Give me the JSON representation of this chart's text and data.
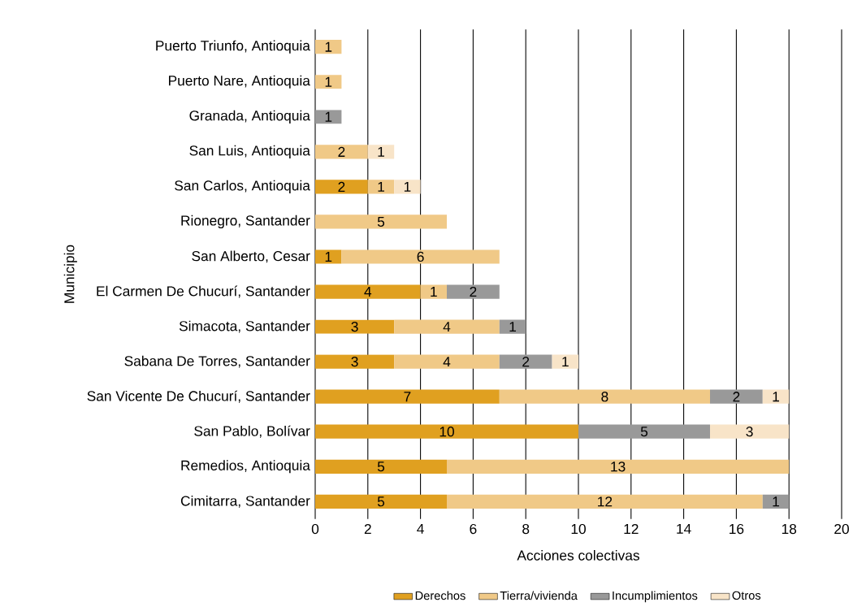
{
  "chart_data": {
    "type": "bar",
    "orientation": "horizontal",
    "stacked": true,
    "data_labels": true,
    "grid": "x",
    "legend": "bottom",
    "xlabel": "Acciones colectivas",
    "ylabel": "Municipio",
    "xlim": [
      0,
      20
    ],
    "xticks": [
      0,
      2,
      4,
      6,
      8,
      10,
      12,
      14,
      16,
      18,
      20
    ],
    "categories": [
      "Puerto Triunfo, Antioquia",
      "Puerto Nare, Antioquia",
      "Granada, Antioquia",
      "San Luis, Antioquia",
      "San Carlos, Antioquia",
      "Rionegro, Santander",
      "San Alberto, Cesar",
      "El Carmen De Chucurí, Santander",
      "Simacota, Santander",
      "Sabana De Torres, Santander",
      "San Vicente De Chucurí, Santander",
      "San Pablo, Bolívar",
      "Remedios, Antioquia",
      "Cimitarra, Santander"
    ],
    "series": [
      {
        "name": "Derechos",
        "color": "#e0a020",
        "values": [
          null,
          null,
          null,
          null,
          2,
          null,
          1,
          4,
          3,
          3,
          7,
          10,
          5,
          5
        ]
      },
      {
        "name": "Tierra/vivienda",
        "color": "#f0c987",
        "values": [
          1,
          1,
          null,
          2,
          1,
          5,
          6,
          1,
          4,
          4,
          8,
          null,
          13,
          12
        ]
      },
      {
        "name": "Incumplimientos",
        "color": "#999999",
        "values": [
          null,
          null,
          1,
          null,
          null,
          null,
          null,
          2,
          1,
          2,
          2,
          5,
          null,
          1
        ]
      },
      {
        "name": "Otros",
        "color": "#f8e4c8",
        "values": [
          null,
          null,
          null,
          1,
          1,
          null,
          null,
          null,
          null,
          1,
          1,
          3,
          null,
          null
        ]
      }
    ]
  }
}
